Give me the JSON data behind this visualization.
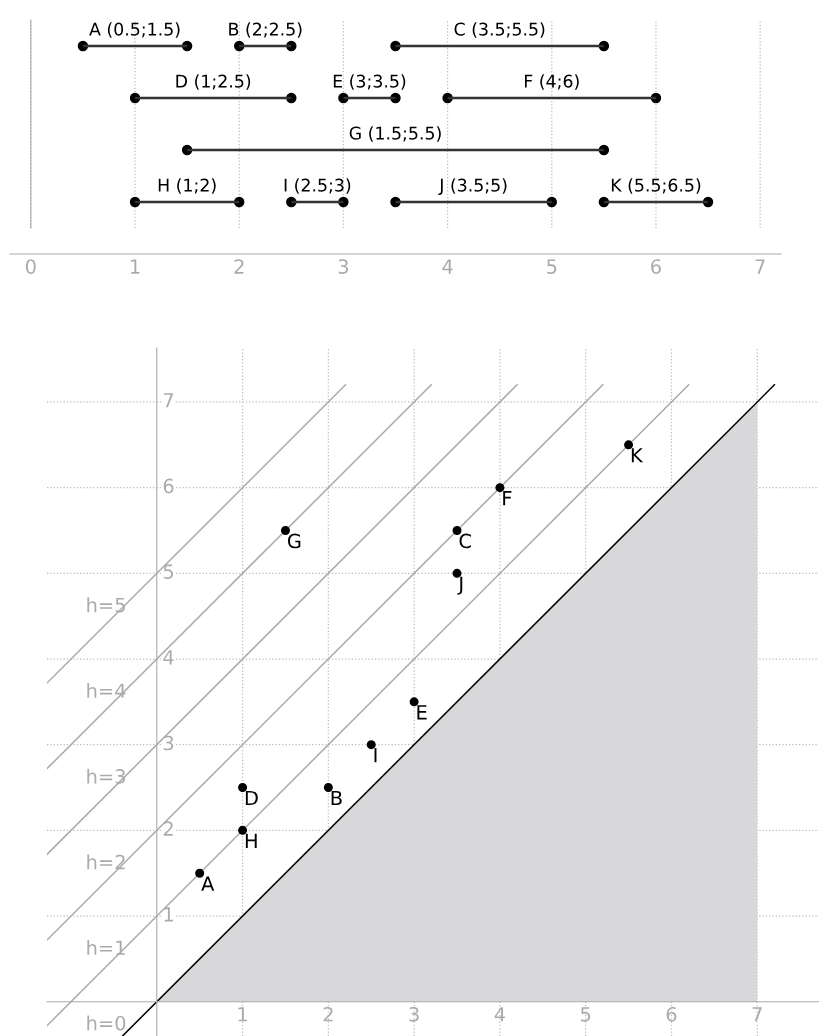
{
  "chart_data": [
    {
      "type": "bar",
      "orientation": "horizontal",
      "categories": [
        null,
        null,
        null,
        null
      ],
      "marker": "circle",
      "series": [
        {
          "color": "#333333",
          "base": [
            0.5,
            1,
            1.5,
            1
          ],
          "values": [
            1,
            1.5,
            4,
            1
          ],
          "value_labels": [
            "A (0.5;1.5)",
            "D (1;2.5)",
            "G (1.5;5.5)",
            "H (1;2)"
          ]
        },
        {
          "color": "#333333",
          "base": [
            2,
            3,
            null,
            2.5
          ],
          "values": [
            0.5,
            0.5,
            null,
            0.5
          ],
          "value_labels": [
            "B (2;2.5)",
            "E (3;3.5)",
            null,
            "I (2.5;3)"
          ]
        },
        {
          "color": "#333333",
          "base": [
            3.5,
            4,
            null,
            3.5
          ],
          "values": [
            2,
            2,
            null,
            1.5
          ],
          "value_labels": [
            "C (3.5;5.5)",
            "F (4;6)",
            null,
            "J (3.5;5)"
          ]
        },
        {
          "color": "#333333",
          "base": [
            null,
            null,
            null,
            5.5
          ],
          "values": [
            null,
            null,
            null,
            1
          ],
          "value_labels": [
            null,
            null,
            null,
            "K (5.5;6.5)"
          ]
        }
      ],
      "xlim": [
        -0.2,
        7.2
      ],
      "xticks": [
        0,
        1,
        2,
        3,
        4,
        5,
        6,
        7
      ],
      "grid": "x"
    },
    {
      "type": "scatter",
      "xlim": [
        -1.28,
        7.72
      ],
      "ylim": [
        -0.4,
        7.63
      ],
      "xticks": [
        1,
        2,
        3,
        4,
        5,
        6,
        7
      ],
      "yticks": [
        1,
        2,
        3,
        4,
        5,
        6,
        7
      ],
      "grid": true,
      "series": [
        {
          "type": "area",
          "color": "#d8d8da",
          "x": [
            0,
            7
          ],
          "values": [
            0,
            7
          ]
        },
        {
          "type": "line",
          "name": "h=0",
          "color": "#000000",
          "x": [
            -0.4,
            7.2
          ],
          "values": [
            -0.4,
            7.2
          ]
        },
        {
          "type": "line",
          "name": "h=1",
          "color": "#aaaaaa",
          "x": [
            -1.28,
            6.2
          ],
          "values": [
            -0.28,
            7.2
          ]
        },
        {
          "type": "line",
          "name": "h=2",
          "color": "#aaaaaa",
          "x": [
            -1.28,
            5.2
          ],
          "values": [
            0.72,
            7.2
          ]
        },
        {
          "type": "line",
          "name": "h=3",
          "color": "#aaaaaa",
          "x": [
            -1.28,
            4.2
          ],
          "values": [
            1.72,
            7.2
          ]
        },
        {
          "type": "line",
          "name": "h=4",
          "color": "#aaaaaa",
          "x": [
            -1.28,
            3.2
          ],
          "values": [
            2.72,
            7.2
          ]
        },
        {
          "type": "line",
          "name": "h=5",
          "color": "#aaaaaa",
          "x": [
            -1.28,
            2.2
          ],
          "values": [
            3.72,
            7.2
          ]
        },
        {
          "type": "scatter",
          "marker": "circle",
          "color": "#000000",
          "x": [
            0.5,
            2,
            3.5,
            1,
            3,
            4,
            1.5,
            1,
            2.5,
            3.5,
            5.5
          ],
          "values": [
            1.5,
            2.5,
            5.5,
            2.5,
            3.5,
            6,
            5.5,
            2,
            3,
            5,
            6.5
          ],
          "value_labels": [
            "A",
            "B",
            "C",
            "D",
            "E",
            "F",
            "G",
            "H",
            "I",
            "J",
            "K"
          ]
        }
      ]
    }
  ]
}
